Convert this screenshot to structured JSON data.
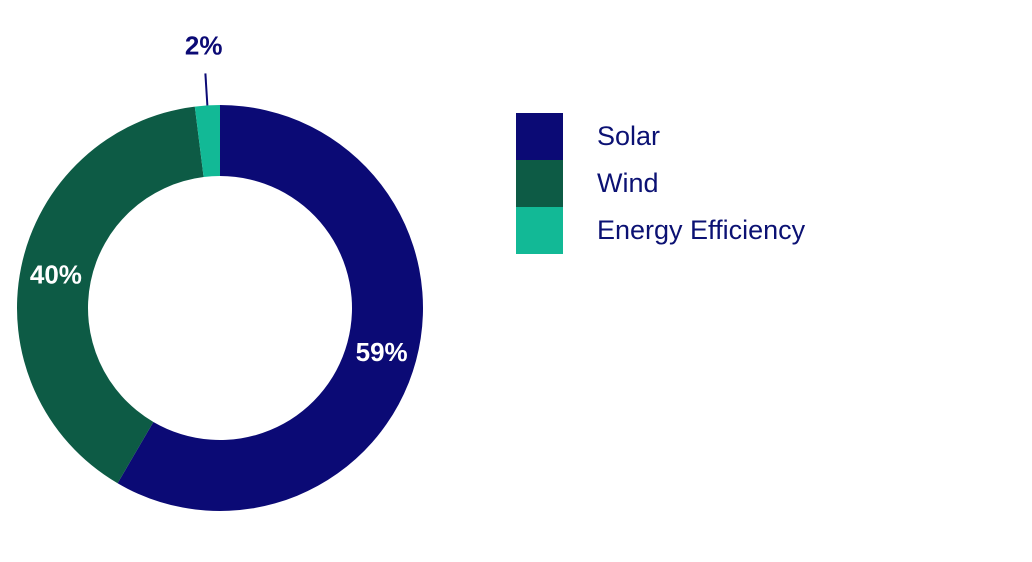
{
  "chart_data": {
    "type": "pie",
    "donut": true,
    "categories": [
      "Solar",
      "Wind",
      "Energy Efficiency"
    ],
    "values": [
      59,
      40,
      2
    ],
    "labels": [
      "59%",
      "40%",
      "2%"
    ],
    "colors": [
      "#0b0a75",
      "#0d5b45",
      "#12b996"
    ],
    "label_colors": [
      "#ffffff",
      "#ffffff",
      "#0b0a75"
    ],
    "legend_position": "right"
  }
}
